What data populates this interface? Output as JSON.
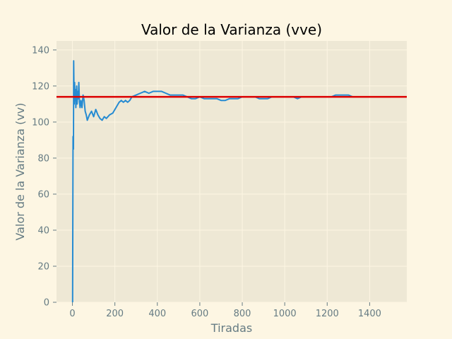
{
  "colors": {
    "figure_bg": "#fdf6e3",
    "axes_bg": "#eee8d5",
    "grid": "#fdf6e3",
    "text": "#657b83",
    "series": "#268bd2",
    "reference": "#dc0000"
  },
  "chart_data": {
    "type": "line",
    "title": "Valor de la Varianza (vve)",
    "xlabel": "Tiradas",
    "ylabel": "Valor de la Varianza (vv)",
    "xlim": [
      -75,
      1575
    ],
    "ylim": [
      0,
      145
    ],
    "xticks": [
      0,
      200,
      400,
      600,
      800,
      1000,
      1200,
      1400
    ],
    "yticks": [
      0,
      20,
      40,
      60,
      80,
      100,
      120,
      140
    ],
    "grid": true,
    "series": [
      {
        "values": [
          [
            1,
            0
          ],
          [
            3,
            92
          ],
          [
            5,
            85
          ],
          [
            6,
            134
          ],
          [
            8,
            110
          ],
          [
            10,
            122
          ],
          [
            12,
            112
          ],
          [
            14,
            118
          ],
          [
            16,
            108
          ],
          [
            18,
            115
          ],
          [
            20,
            120
          ],
          [
            22,
            110
          ],
          [
            25,
            117
          ],
          [
            28,
            113
          ],
          [
            30,
            122
          ],
          [
            33,
            111
          ],
          [
            36,
            108
          ],
          [
            40,
            112
          ],
          [
            45,
            108
          ],
          [
            50,
            115
          ],
          [
            55,
            112
          ],
          [
            60,
            106
          ],
          [
            65,
            104
          ],
          [
            70,
            101
          ],
          [
            80,
            104
          ],
          [
            90,
            106
          ],
          [
            100,
            103
          ],
          [
            110,
            107
          ],
          [
            120,
            104
          ],
          [
            130,
            102
          ],
          [
            140,
            101
          ],
          [
            150,
            103
          ],
          [
            160,
            102
          ],
          [
            175,
            104
          ],
          [
            190,
            105
          ],
          [
            200,
            107
          ],
          [
            210,
            109
          ],
          [
            220,
            111
          ],
          [
            230,
            112
          ],
          [
            240,
            111
          ],
          [
            250,
            112
          ],
          [
            260,
            111
          ],
          [
            270,
            112
          ],
          [
            280,
            114
          ],
          [
            300,
            115
          ],
          [
            320,
            116
          ],
          [
            340,
            117
          ],
          [
            360,
            116
          ],
          [
            380,
            117
          ],
          [
            400,
            117
          ],
          [
            420,
            117
          ],
          [
            440,
            116
          ],
          [
            460,
            115
          ],
          [
            480,
            115
          ],
          [
            500,
            115
          ],
          [
            520,
            115
          ],
          [
            540,
            114
          ],
          [
            560,
            113
          ],
          [
            580,
            113
          ],
          [
            600,
            114
          ],
          [
            620,
            113
          ],
          [
            640,
            113
          ],
          [
            660,
            113
          ],
          [
            680,
            113
          ],
          [
            700,
            112
          ],
          [
            720,
            112
          ],
          [
            740,
            113
          ],
          [
            760,
            113
          ],
          [
            780,
            113
          ],
          [
            800,
            114
          ],
          [
            820,
            114
          ],
          [
            840,
            114
          ],
          [
            860,
            114
          ],
          [
            880,
            113
          ],
          [
            900,
            113
          ],
          [
            920,
            113
          ],
          [
            940,
            114
          ],
          [
            960,
            114
          ],
          [
            980,
            114
          ],
          [
            1000,
            114
          ],
          [
            1020,
            114
          ],
          [
            1040,
            114
          ],
          [
            1060,
            113
          ],
          [
            1080,
            114
          ],
          [
            1100,
            114
          ],
          [
            1120,
            114
          ],
          [
            1140,
            114
          ],
          [
            1160,
            114
          ],
          [
            1180,
            114
          ],
          [
            1200,
            114
          ],
          [
            1220,
            114
          ],
          [
            1240,
            115
          ],
          [
            1260,
            115
          ],
          [
            1280,
            115
          ],
          [
            1300,
            115
          ],
          [
            1320,
            114
          ],
          [
            1340,
            114
          ],
          [
            1360,
            114
          ],
          [
            1380,
            114
          ],
          [
            1400,
            114
          ],
          [
            1420,
            114
          ],
          [
            1440,
            114
          ],
          [
            1460,
            114
          ],
          [
            1480,
            114
          ],
          [
            1500,
            114
          ]
        ]
      }
    ],
    "reference_line": {
      "y": 114
    }
  }
}
